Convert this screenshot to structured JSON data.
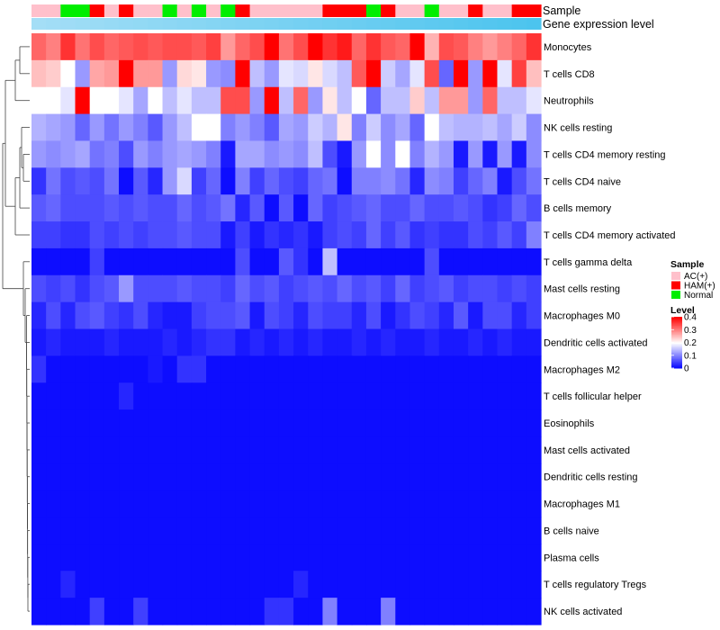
{
  "chart_data": {
    "type": "heatmap",
    "rows": [
      "Monocytes",
      "T cells CD8",
      "Neutrophils",
      "NK cells resting",
      "T cells CD4 memory resting",
      "T cells CD4 naive",
      "B cells memory",
      "T cells CD4 memory activated",
      "T cells gamma delta",
      "Mast cells resting",
      "Macrophages M0",
      "Dendritic cells activated",
      "Macrophages M2",
      "T cells follicular helper",
      "Eosinophils",
      "Mast cells activated",
      "Dendritic cells resting",
      "Macrophages M1",
      "B cells naive",
      "Plasma cells",
      "T cells regulatory  Tregs",
      "NK cells activated"
    ],
    "sample_groups": [
      "AC(+)",
      "AC(+)",
      "Normal",
      "Normal",
      "HAM(+)",
      "AC(+)",
      "HAM(+)",
      "AC(+)",
      "AC(+)",
      "Normal",
      "AC(+)",
      "Normal",
      "AC(+)",
      "Normal",
      "HAM(+)",
      "AC(+)",
      "AC(+)",
      "AC(+)",
      "AC(+)",
      "AC(+)",
      "HAM(+)",
      "HAM(+)",
      "HAM(+)",
      "Normal",
      "HAM(+)",
      "AC(+)",
      "AC(+)",
      "Normal",
      "AC(+)",
      "AC(+)",
      "HAM(+)",
      "AC(+)",
      "AC(+)",
      "HAM(+)",
      "HAM(+)"
    ],
    "values": [
      [
        0.32,
        0.3,
        0.36,
        0.31,
        0.34,
        0.32,
        0.33,
        0.34,
        0.33,
        0.34,
        0.34,
        0.33,
        0.35,
        0.28,
        0.32,
        0.34,
        0.4,
        0.31,
        0.34,
        0.4,
        0.36,
        0.38,
        0.32,
        0.36,
        0.33,
        0.32,
        0.4,
        0.26,
        0.34,
        0.33,
        0.3,
        0.28,
        0.3,
        0.32,
        0.36
      ],
      [
        0.25,
        0.24,
        0.2,
        0.12,
        0.27,
        0.28,
        0.4,
        0.28,
        0.28,
        0.12,
        0.23,
        0.22,
        0.12,
        0.11,
        0.4,
        0.15,
        0.12,
        0.18,
        0.17,
        0.22,
        0.17,
        0.15,
        0.33,
        0.4,
        0.16,
        0.13,
        0.18,
        0.34,
        0.08,
        0.4,
        0.12,
        0.4,
        0.18,
        0.35,
        0.25
      ],
      [
        0.2,
        0.2,
        0.18,
        0.4,
        0.2,
        0.2,
        0.18,
        0.13,
        0.2,
        0.15,
        0.18,
        0.15,
        0.15,
        0.34,
        0.34,
        0.12,
        0.4,
        0.15,
        0.32,
        0.12,
        0.22,
        0.15,
        0.2,
        0.08,
        0.15,
        0.15,
        0.24,
        0.15,
        0.28,
        0.28,
        0.12,
        0.32,
        0.15,
        0.15,
        0.18
      ],
      [
        0.14,
        0.13,
        0.12,
        0.08,
        0.12,
        0.09,
        0.12,
        0.1,
        0.07,
        0.12,
        0.15,
        0.2,
        0.2,
        0.1,
        0.12,
        0.1,
        0.07,
        0.13,
        0.12,
        0.16,
        0.14,
        0.22,
        0.1,
        0.16,
        0.11,
        0.13,
        0.08,
        0.2,
        0.15,
        0.14,
        0.14,
        0.15,
        0.13,
        0.16,
        0.11
      ],
      [
        0.12,
        0.11,
        0.12,
        0.13,
        0.09,
        0.1,
        0.06,
        0.12,
        0.1,
        0.12,
        0.13,
        0.12,
        0.1,
        0.02,
        0.13,
        0.13,
        0.11,
        0.12,
        0.11,
        0.15,
        0.06,
        0.02,
        0.12,
        0.2,
        0.11,
        0.2,
        0.1,
        0.14,
        0.12,
        0.02,
        0.12,
        0.02,
        0.12,
        0.02,
        0.11
      ],
      [
        0.04,
        0.09,
        0.06,
        0.07,
        0.06,
        0.09,
        0.01,
        0.07,
        0.03,
        0.12,
        0.17,
        0.05,
        0.08,
        0.01,
        0.1,
        0.05,
        0.08,
        0.06,
        0.05,
        0.08,
        0.09,
        0.01,
        0.1,
        0.1,
        0.11,
        0.09,
        0.03,
        0.11,
        0.1,
        0.05,
        0.08,
        0.1,
        0.02,
        0.06,
        0.09
      ],
      [
        0.07,
        0.08,
        0.06,
        0.06,
        0.06,
        0.07,
        0.06,
        0.07,
        0.06,
        0.06,
        0.08,
        0.06,
        0.07,
        0.09,
        0.03,
        0.07,
        0.01,
        0.07,
        0.01,
        0.08,
        0.05,
        0.06,
        0.07,
        0.08,
        0.06,
        0.06,
        0.08,
        0.06,
        0.06,
        0.07,
        0.06,
        0.04,
        0.05,
        0.08,
        0.06
      ],
      [
        0.05,
        0.05,
        0.04,
        0.04,
        0.06,
        0.05,
        0.06,
        0.05,
        0.06,
        0.06,
        0.07,
        0.06,
        0.06,
        0.02,
        0.05,
        0.02,
        0.04,
        0.03,
        0.04,
        0.02,
        0.05,
        0.06,
        0.05,
        0.08,
        0.05,
        0.07,
        0.04,
        0.05,
        0.04,
        0.04,
        0.06,
        0.05,
        0.07,
        0.05,
        0.1
      ],
      [
        0.01,
        0.01,
        0.01,
        0.01,
        0.05,
        0.01,
        0.01,
        0.01,
        0.01,
        0.01,
        0.01,
        0.01,
        0.01,
        0.01,
        0.06,
        0.01,
        0.01,
        0.07,
        0.04,
        0.01,
        0.15,
        0.01,
        0.01,
        0.01,
        0.01,
        0.01,
        0.01,
        0.06,
        0.01,
        0.01,
        0.01,
        0.01,
        0.01,
        0.01,
        0.01
      ],
      [
        0.06,
        0.05,
        0.06,
        0.04,
        0.06,
        0.07,
        0.12,
        0.06,
        0.06,
        0.06,
        0.07,
        0.06,
        0.06,
        0.05,
        0.08,
        0.06,
        0.07,
        0.05,
        0.06,
        0.07,
        0.06,
        0.08,
        0.06,
        0.07,
        0.05,
        0.08,
        0.05,
        0.06,
        0.07,
        0.05,
        0.06,
        0.06,
        0.05,
        0.06,
        0.05
      ],
      [
        0.03,
        0.06,
        0.03,
        0.06,
        0.07,
        0.05,
        0.04,
        0.06,
        0.03,
        0.02,
        0.02,
        0.05,
        0.06,
        0.06,
        0.07,
        0.02,
        0.06,
        0.05,
        0.03,
        0.06,
        0.05,
        0.05,
        0.03,
        0.06,
        0.02,
        0.04,
        0.06,
        0.05,
        0.03,
        0.07,
        0.02,
        0.06,
        0.06,
        0.03,
        0.05
      ],
      [
        0.02,
        0.03,
        0.02,
        0.02,
        0.02,
        0.03,
        0.02,
        0.02,
        0.02,
        0.03,
        0.02,
        0.03,
        0.04,
        0.04,
        0.02,
        0.03,
        0.02,
        0.03,
        0.02,
        0.03,
        0.02,
        0.02,
        0.03,
        0.02,
        0.03,
        0.02,
        0.02,
        0.03,
        0.02,
        0.02,
        0.03,
        0.02,
        0.03,
        0.02,
        0.02
      ],
      [
        0.04,
        0.01,
        0.01,
        0.01,
        0.01,
        0.01,
        0.01,
        0.01,
        0.02,
        0.01,
        0.04,
        0.04,
        0.01,
        0.01,
        0.01,
        0.01,
        0.01,
        0.01,
        0.01,
        0.01,
        0.01,
        0.01,
        0.01,
        0.01,
        0.01,
        0.01,
        0.01,
        0.01,
        0.01,
        0.01,
        0.01,
        0.01,
        0.01,
        0.01,
        0.01
      ],
      [
        0.01,
        0.01,
        0.01,
        0.01,
        0.01,
        0.01,
        0.03,
        0.01,
        0.01,
        0.01,
        0.01,
        0.01,
        0.01,
        0.01,
        0.01,
        0.01,
        0.01,
        0.01,
        0.01,
        0.01,
        0.01,
        0.01,
        0.01,
        0.01,
        0.01,
        0.01,
        0.01,
        0.01,
        0.01,
        0.01,
        0.01,
        0.01,
        0.01,
        0.01,
        0.01
      ],
      [
        0.01,
        0.01,
        0.01,
        0.01,
        0.01,
        0.01,
        0.01,
        0.01,
        0.01,
        0.01,
        0.01,
        0.01,
        0.01,
        0.01,
        0.01,
        0.01,
        0.01,
        0.01,
        0.01,
        0.01,
        0.01,
        0.01,
        0.01,
        0.01,
        0.01,
        0.01,
        0.01,
        0.01,
        0.01,
        0.01,
        0.01,
        0.01,
        0.01,
        0.01,
        0.01
      ],
      [
        0.01,
        0.01,
        0.01,
        0.01,
        0.01,
        0.01,
        0.01,
        0.01,
        0.01,
        0.01,
        0.01,
        0.01,
        0.01,
        0.01,
        0.01,
        0.01,
        0.01,
        0.01,
        0.01,
        0.01,
        0.01,
        0.01,
        0.01,
        0.01,
        0.01,
        0.01,
        0.01,
        0.01,
        0.01,
        0.01,
        0.01,
        0.01,
        0.01,
        0.01,
        0.01
      ],
      [
        0.01,
        0.01,
        0.01,
        0.01,
        0.01,
        0.01,
        0.01,
        0.01,
        0.01,
        0.01,
        0.01,
        0.01,
        0.01,
        0.01,
        0.01,
        0.01,
        0.01,
        0.01,
        0.01,
        0.01,
        0.01,
        0.01,
        0.01,
        0.01,
        0.01,
        0.01,
        0.01,
        0.01,
        0.01,
        0.01,
        0.01,
        0.01,
        0.01,
        0.01,
        0.01
      ],
      [
        0.01,
        0.01,
        0.01,
        0.01,
        0.01,
        0.01,
        0.01,
        0.01,
        0.01,
        0.01,
        0.01,
        0.01,
        0.01,
        0.01,
        0.01,
        0.01,
        0.01,
        0.01,
        0.01,
        0.01,
        0.01,
        0.01,
        0.01,
        0.01,
        0.01,
        0.01,
        0.01,
        0.01,
        0.01,
        0.01,
        0.01,
        0.01,
        0.01,
        0.01,
        0.01
      ],
      [
        0.01,
        0.01,
        0.01,
        0.01,
        0.01,
        0.01,
        0.01,
        0.01,
        0.01,
        0.01,
        0.01,
        0.01,
        0.01,
        0.01,
        0.01,
        0.01,
        0.01,
        0.01,
        0.01,
        0.01,
        0.01,
        0.01,
        0.01,
        0.01,
        0.01,
        0.01,
        0.01,
        0.01,
        0.01,
        0.01,
        0.01,
        0.01,
        0.01,
        0.01,
        0.01
      ],
      [
        0.01,
        0.01,
        0.01,
        0.01,
        0.01,
        0.01,
        0.01,
        0.01,
        0.01,
        0.01,
        0.01,
        0.01,
        0.01,
        0.01,
        0.01,
        0.01,
        0.01,
        0.01,
        0.01,
        0.01,
        0.01,
        0.01,
        0.01,
        0.01,
        0.01,
        0.01,
        0.01,
        0.01,
        0.01,
        0.01,
        0.01,
        0.01,
        0.01,
        0.01,
        0.01
      ],
      [
        0.01,
        0.01,
        0.03,
        0.01,
        0.01,
        0.01,
        0.01,
        0.01,
        0.01,
        0.01,
        0.01,
        0.01,
        0.01,
        0.01,
        0.01,
        0.01,
        0.01,
        0.01,
        0.03,
        0.01,
        0.01,
        0.01,
        0.01,
        0.01,
        0.01,
        0.01,
        0.01,
        0.01,
        0.01,
        0.01,
        0.01,
        0.01,
        0.01,
        0.01,
        0.01
      ],
      [
        0.01,
        0.01,
        0.01,
        0.01,
        0.05,
        0.01,
        0.01,
        0.05,
        0.01,
        0.01,
        0.01,
        0.01,
        0.01,
        0.01,
        0.01,
        0.01,
        0.04,
        0.04,
        0.01,
        0.01,
        0.1,
        0.01,
        0.01,
        0.01,
        0.1,
        0.01,
        0.01,
        0.01,
        0.01,
        0.01,
        0.01,
        0.01,
        0.01,
        0.01,
        0.01
      ]
    ],
    "annotations": {
      "sample_label": "Sample",
      "gene_label": "Gene expression level"
    },
    "legend": {
      "sample_title": "Sample",
      "sample_items": [
        {
          "label": "AC(+)",
          "color": "#ffc0cb"
        },
        {
          "label": "HAM(+)",
          "color": "#ff0000"
        },
        {
          "label": "Normal",
          "color": "#00ee00"
        }
      ],
      "level_title": "Level",
      "level_ticks": [
        "0.4",
        "0.3",
        "0.2",
        "0.1",
        "0"
      ],
      "level_range": [
        0,
        0.4
      ]
    },
    "colors": {
      "low": "#0000ff",
      "mid": "#ffffff",
      "high": "#ff0000",
      "gene_bar_left": "#a4def6",
      "gene_bar_right": "#4cc4ee"
    }
  }
}
